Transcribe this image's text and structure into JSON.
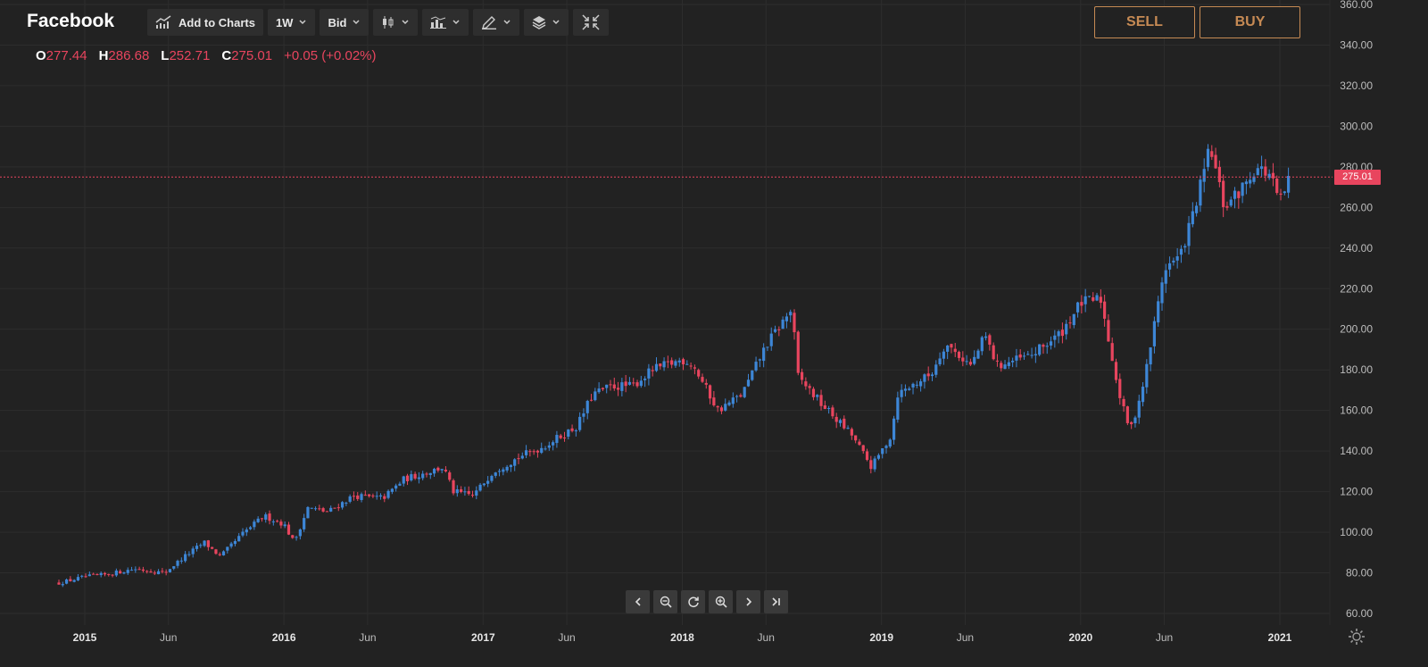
{
  "app": {
    "title": "Facebook"
  },
  "toolbar": {
    "add_to_charts": {
      "label": "Add to Charts",
      "icon": "chart-up-icon"
    },
    "timeframe": {
      "label": "1W"
    },
    "price_type": {
      "label": "Bid"
    },
    "chart_type": {
      "icon": "candlestick-icon"
    },
    "indicators": {
      "icon": "indicators-icon"
    },
    "drawing": {
      "icon": "pencil-icon"
    },
    "layers": {
      "icon": "layers-icon"
    },
    "collapse": {
      "icon": "collapse-icon"
    }
  },
  "ohlc": {
    "o_label": "O",
    "o_value": "277.44",
    "h_label": "H",
    "h_value": "286.68",
    "l_label": "L",
    "l_value": "252.71",
    "c_label": "C",
    "c_value": "275.01",
    "change": "+0.05 (+0.02%)"
  },
  "trade": {
    "sell_label": "SELL",
    "buy_label": "BUY"
  },
  "current_price": {
    "label": "275.01",
    "value": 275.01
  },
  "colors": {
    "up": "#3d86d6",
    "down": "#e8455e",
    "accent": "#c68a54",
    "background": "#222222",
    "grid": "#2d2d2d"
  },
  "chart_data": {
    "type": "candlestick",
    "title": "Facebook",
    "interval": "1W",
    "ylim": [
      60,
      360
    ],
    "yticks": [
      "60.00",
      "80.00",
      "100.00",
      "120.00",
      "140.00",
      "160.00",
      "180.00",
      "200.00",
      "220.00",
      "240.00",
      "260.00",
      "280.00",
      "300.00",
      "320.00",
      "340.00",
      "360.00"
    ],
    "xticks": [
      {
        "label": "2015",
        "t": 2015.0,
        "bold": true
      },
      {
        "label": "Jun",
        "t": 2015.42,
        "bold": false
      },
      {
        "label": "2016",
        "t": 2016.0,
        "bold": true
      },
      {
        "label": "Jun",
        "t": 2016.42,
        "bold": false
      },
      {
        "label": "2017",
        "t": 2017.0,
        "bold": true
      },
      {
        "label": "Jun",
        "t": 2017.42,
        "bold": false
      },
      {
        "label": "2018",
        "t": 2018.0,
        "bold": true
      },
      {
        "label": "Jun",
        "t": 2018.42,
        "bold": false
      },
      {
        "label": "2019",
        "t": 2019.0,
        "bold": true
      },
      {
        "label": "Jun",
        "t": 2019.42,
        "bold": false
      },
      {
        "label": "2020",
        "t": 2020.0,
        "bold": true
      },
      {
        "label": "Jun",
        "t": 2020.42,
        "bold": false
      },
      {
        "label": "2021",
        "t": 2021.0,
        "bold": true
      }
    ],
    "xlim": [
      2014.83,
      2021.08
    ],
    "key_closes": [
      [
        2014.87,
        75
      ],
      [
        2015.0,
        78
      ],
      [
        2015.1,
        79
      ],
      [
        2015.25,
        82
      ],
      [
        2015.4,
        80
      ],
      [
        2015.5,
        88
      ],
      [
        2015.6,
        95
      ],
      [
        2015.68,
        88
      ],
      [
        2015.8,
        100
      ],
      [
        2015.9,
        108
      ],
      [
        2016.0,
        104
      ],
      [
        2016.05,
        95
      ],
      [
        2016.12,
        112
      ],
      [
        2016.22,
        110
      ],
      [
        2016.35,
        118
      ],
      [
        2016.45,
        117
      ],
      [
        2016.5,
        117
      ],
      [
        2016.6,
        126
      ],
      [
        2016.7,
        129
      ],
      [
        2016.8,
        132
      ],
      [
        2016.85,
        120
      ],
      [
        2016.95,
        118
      ],
      [
        2017.05,
        130
      ],
      [
        2017.2,
        138
      ],
      [
        2017.3,
        142
      ],
      [
        2017.4,
        148
      ],
      [
        2017.47,
        152
      ],
      [
        2017.55,
        168
      ],
      [
        2017.65,
        172
      ],
      [
        2017.75,
        172
      ],
      [
        2017.85,
        180
      ],
      [
        2018.0,
        185
      ],
      [
        2018.05,
        183
      ],
      [
        2018.18,
        160
      ],
      [
        2018.3,
        168
      ],
      [
        2018.42,
        192
      ],
      [
        2018.55,
        210
      ],
      [
        2018.58,
        177
      ],
      [
        2018.7,
        163
      ],
      [
        2018.85,
        148
      ],
      [
        2018.95,
        132
      ],
      [
        2019.05,
        148
      ],
      [
        2019.08,
        168
      ],
      [
        2019.25,
        178
      ],
      [
        2019.32,
        193
      ],
      [
        2019.45,
        182
      ],
      [
        2019.52,
        197
      ],
      [
        2019.58,
        182
      ],
      [
        2019.75,
        187
      ],
      [
        2019.9,
        198
      ],
      [
        2020.0,
        213
      ],
      [
        2020.1,
        215
      ],
      [
        2020.2,
        165
      ],
      [
        2020.25,
        150
      ],
      [
        2020.32,
        175
      ],
      [
        2020.42,
        230
      ],
      [
        2020.5,
        236
      ],
      [
        2020.58,
        262
      ],
      [
        2020.65,
        290
      ],
      [
        2020.72,
        260
      ],
      [
        2020.8,
        268
      ],
      [
        2020.88,
        280
      ],
      [
        2020.95,
        276
      ],
      [
        2021.0,
        262
      ],
      [
        2021.05,
        275
      ]
    ]
  }
}
